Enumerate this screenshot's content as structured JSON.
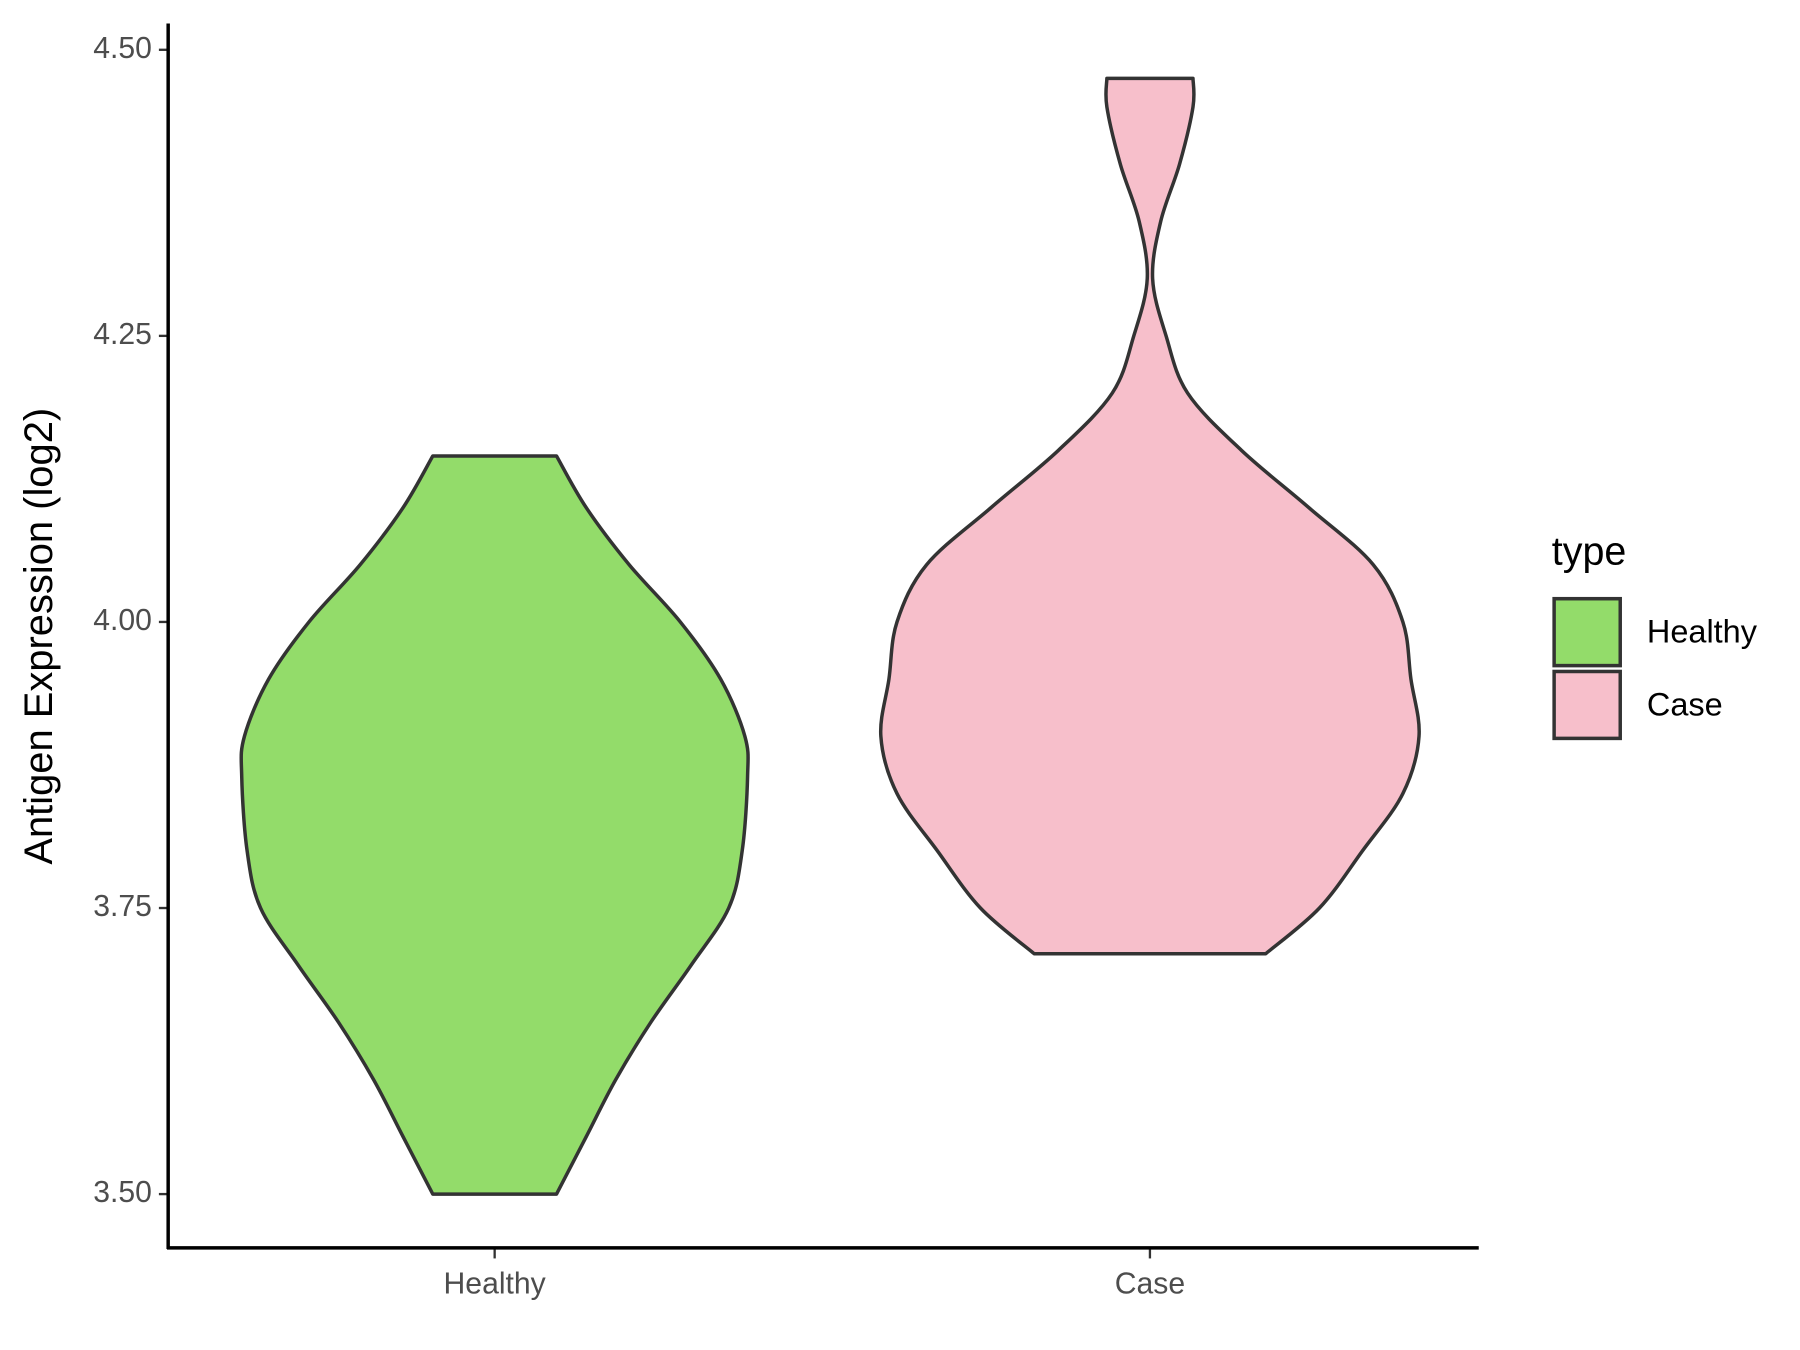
{
  "chart_data": {
    "type": "violin",
    "y_label": "Antigen Expression (log2)",
    "categories": [
      "Healthy",
      "Case"
    ],
    "legend_title": "type",
    "legend_position": "right",
    "series": [
      {
        "name": "Healthy",
        "color": "#93dc6a",
        "y": [
          3.5,
          3.55,
          3.6,
          3.65,
          3.7,
          3.75,
          3.8,
          3.865,
          3.9,
          3.95,
          4.0,
          4.05,
          4.1,
          4.145
        ],
        "density": [
          0.23,
          0.34,
          0.45,
          0.58,
          0.73,
          0.87,
          0.92,
          0.94,
          0.93,
          0.84,
          0.69,
          0.5,
          0.34,
          0.23
        ]
      },
      {
        "name": "Case",
        "color": "#f7bfcb",
        "y": [
          3.71,
          3.75,
          3.8,
          3.85,
          3.9,
          3.95,
          4.0,
          4.05,
          4.1,
          4.15,
          4.2,
          4.25,
          4.3,
          4.35,
          4.4,
          4.45,
          4.475
        ],
        "density": [
          0.43,
          0.63,
          0.79,
          0.94,
          1.0,
          0.97,
          0.94,
          0.83,
          0.59,
          0.34,
          0.14,
          0.06,
          0.01,
          0.04,
          0.11,
          0.16,
          0.16
        ]
      }
    ],
    "ylim": [
      3.453,
      4.523
    ],
    "yticks": [
      {
        "value": 3.5,
        "label": "3.50"
      },
      {
        "value": 3.75,
        "label": "3.75"
      },
      {
        "value": 4.0,
        "label": "4.00"
      },
      {
        "value": 4.25,
        "label": "4.25"
      },
      {
        "value": 4.5,
        "label": "4.50"
      }
    ]
  }
}
